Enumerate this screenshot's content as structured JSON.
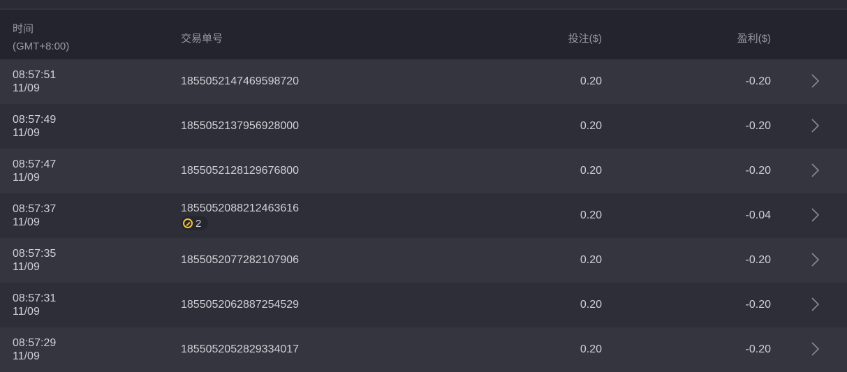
{
  "header": {
    "time": "时间",
    "timezone": "(GMT+8:00)",
    "order_id": "交易单号",
    "bet": "投注($)",
    "profit": "盈利($)"
  },
  "rows": [
    {
      "time": "08:57:51",
      "date": "11/09",
      "id": "1855052147469598720",
      "bet": "0.20",
      "profit": "-0.20"
    },
    {
      "time": "08:57:49",
      "date": "11/09",
      "id": "1855052137956928000",
      "bet": "0.20",
      "profit": "-0.20"
    },
    {
      "time": "08:57:47",
      "date": "11/09",
      "id": "1855052128129676800",
      "bet": "0.20",
      "profit": "-0.20"
    },
    {
      "time": "08:57:37",
      "date": "11/09",
      "id": "1855052088212463616",
      "bet": "0.20",
      "profit": "-0.04",
      "badge": "2"
    },
    {
      "time": "08:57:35",
      "date": "11/09",
      "id": "1855052077282107906",
      "bet": "0.20",
      "profit": "-0.20"
    },
    {
      "time": "08:57:31",
      "date": "11/09",
      "id": "1855052062887254529",
      "bet": "0.20",
      "profit": "-0.20"
    },
    {
      "time": "08:57:29",
      "date": "11/09",
      "id": "1855052052829334017",
      "bet": "0.20",
      "profit": "-0.20"
    }
  ]
}
